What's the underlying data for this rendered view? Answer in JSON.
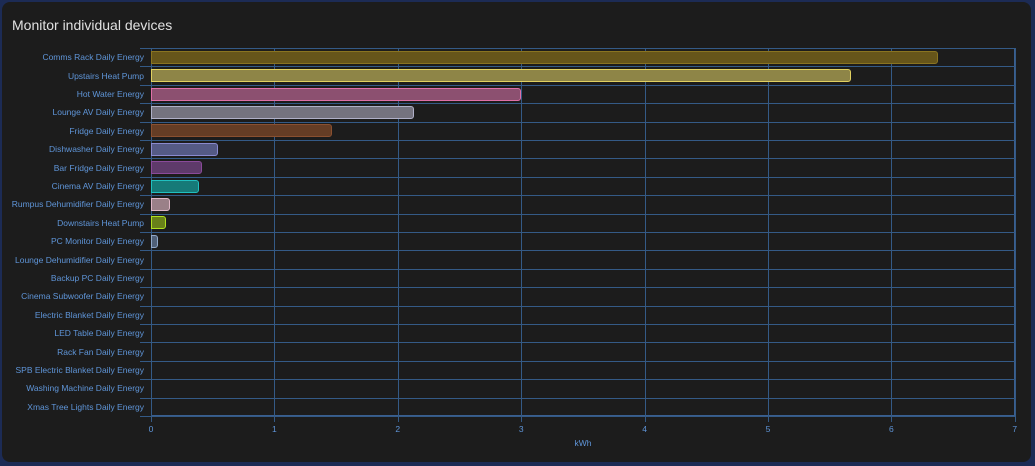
{
  "card": {
    "title": "Monitor individual devices"
  },
  "chart_data": {
    "type": "bar",
    "orientation": "horizontal",
    "title": "Monitor individual devices",
    "xlabel": "kWh",
    "ylabel": "",
    "xlim": [
      0,
      7
    ],
    "x_ticks": [
      "0",
      "1",
      "2",
      "3",
      "4",
      "5",
      "6",
      "7"
    ],
    "grid": true,
    "categories": [
      "Comms Rack Daily Energy",
      "Upstairs Heat Pump",
      "Hot Water Energy",
      "Lounge AV Daily Energy",
      "Fridge Daily Energy",
      "Dishwasher Daily Energy",
      "Bar Fridge Daily Energy",
      "Cinema AV Daily Energy",
      "Rumpus Dehumidifier Daily Energy",
      "Downstairs Heat Pump",
      "PC Monitor Daily Energy",
      "Lounge Dehumidifier Daily Energy",
      "Backup PC Daily Energy",
      "Cinema Subwoofer Daily Energy",
      "Electric Blanket Daily Energy",
      "LED Table Daily Energy",
      "Rack Fan Daily Energy",
      "SPB Electric Blanket Daily Energy",
      "Washing Machine Daily Energy",
      "Xmas Tree Lights Daily Energy"
    ],
    "values": [
      6.38,
      5.67,
      3.0,
      2.13,
      1.47,
      0.54,
      0.41,
      0.39,
      0.15,
      0.12,
      0.06,
      0,
      0,
      0,
      0,
      0,
      0,
      0,
      0,
      0
    ],
    "colors": [
      {
        "fill": "#66551a",
        "stroke": "#8a7420"
      },
      {
        "fill": "#8e8547",
        "stroke": "#e0d060"
      },
      {
        "fill": "#8c5070",
        "stroke": "#e070a8"
      },
      {
        "fill": "#75737f",
        "stroke": "#b0b0c8"
      },
      {
        "fill": "#653d25",
        "stroke": "#8a5030"
      },
      {
        "fill": "#555a85",
        "stroke": "#8a8ad0"
      },
      {
        "fill": "#5e3a6a",
        "stroke": "#8a4a9a"
      },
      {
        "fill": "#167a78",
        "stroke": "#20c0c0"
      },
      {
        "fill": "#9a8088",
        "stroke": "#e0b8c8"
      },
      {
        "fill": "#68801a",
        "stroke": "#b0e020"
      },
      {
        "fill": "#4f6078",
        "stroke": "#90a8c8"
      }
    ]
  }
}
